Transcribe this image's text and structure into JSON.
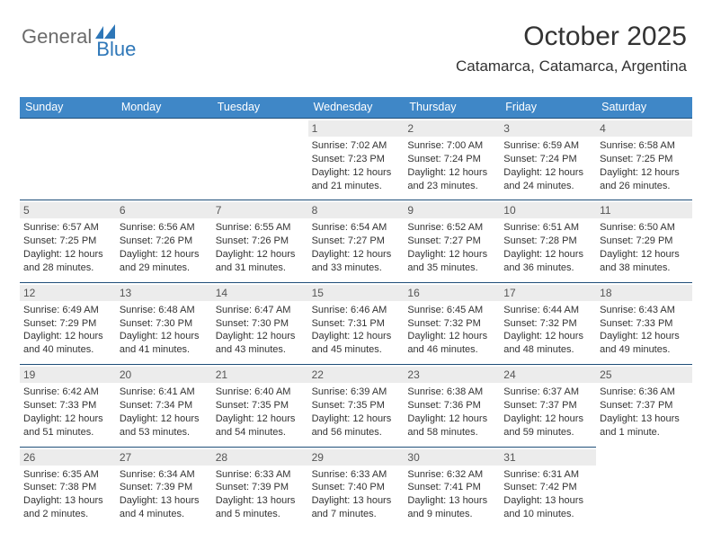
{
  "brand": {
    "general": "General",
    "blue": "Blue"
  },
  "title": "October 2025",
  "location": "Catamarca, Catamarca, Argentina",
  "colors": {
    "header_bg": "#3f87c7",
    "header_text": "#ffffff",
    "rule": "#1f4e79",
    "datebar_bg": "#ececec",
    "brand_blue": "#2e77b8",
    "brand_gray": "#6b6b6b"
  },
  "day_headers": [
    "Sunday",
    "Monday",
    "Tuesday",
    "Wednesday",
    "Thursday",
    "Friday",
    "Saturday"
  ],
  "leading_blanks": 3,
  "days": [
    {
      "n": "1",
      "sunrise": "Sunrise: 7:02 AM",
      "sunset": "Sunset: 7:23 PM",
      "d1": "Daylight: 12 hours",
      "d2": "and 21 minutes."
    },
    {
      "n": "2",
      "sunrise": "Sunrise: 7:00 AM",
      "sunset": "Sunset: 7:24 PM",
      "d1": "Daylight: 12 hours",
      "d2": "and 23 minutes."
    },
    {
      "n": "3",
      "sunrise": "Sunrise: 6:59 AM",
      "sunset": "Sunset: 7:24 PM",
      "d1": "Daylight: 12 hours",
      "d2": "and 24 minutes."
    },
    {
      "n": "4",
      "sunrise": "Sunrise: 6:58 AM",
      "sunset": "Sunset: 7:25 PM",
      "d1": "Daylight: 12 hours",
      "d2": "and 26 minutes."
    },
    {
      "n": "5",
      "sunrise": "Sunrise: 6:57 AM",
      "sunset": "Sunset: 7:25 PM",
      "d1": "Daylight: 12 hours",
      "d2": "and 28 minutes."
    },
    {
      "n": "6",
      "sunrise": "Sunrise: 6:56 AM",
      "sunset": "Sunset: 7:26 PM",
      "d1": "Daylight: 12 hours",
      "d2": "and 29 minutes."
    },
    {
      "n": "7",
      "sunrise": "Sunrise: 6:55 AM",
      "sunset": "Sunset: 7:26 PM",
      "d1": "Daylight: 12 hours",
      "d2": "and 31 minutes."
    },
    {
      "n": "8",
      "sunrise": "Sunrise: 6:54 AM",
      "sunset": "Sunset: 7:27 PM",
      "d1": "Daylight: 12 hours",
      "d2": "and 33 minutes."
    },
    {
      "n": "9",
      "sunrise": "Sunrise: 6:52 AM",
      "sunset": "Sunset: 7:27 PM",
      "d1": "Daylight: 12 hours",
      "d2": "and 35 minutes."
    },
    {
      "n": "10",
      "sunrise": "Sunrise: 6:51 AM",
      "sunset": "Sunset: 7:28 PM",
      "d1": "Daylight: 12 hours",
      "d2": "and 36 minutes."
    },
    {
      "n": "11",
      "sunrise": "Sunrise: 6:50 AM",
      "sunset": "Sunset: 7:29 PM",
      "d1": "Daylight: 12 hours",
      "d2": "and 38 minutes."
    },
    {
      "n": "12",
      "sunrise": "Sunrise: 6:49 AM",
      "sunset": "Sunset: 7:29 PM",
      "d1": "Daylight: 12 hours",
      "d2": "and 40 minutes."
    },
    {
      "n": "13",
      "sunrise": "Sunrise: 6:48 AM",
      "sunset": "Sunset: 7:30 PM",
      "d1": "Daylight: 12 hours",
      "d2": "and 41 minutes."
    },
    {
      "n": "14",
      "sunrise": "Sunrise: 6:47 AM",
      "sunset": "Sunset: 7:30 PM",
      "d1": "Daylight: 12 hours",
      "d2": "and 43 minutes."
    },
    {
      "n": "15",
      "sunrise": "Sunrise: 6:46 AM",
      "sunset": "Sunset: 7:31 PM",
      "d1": "Daylight: 12 hours",
      "d2": "and 45 minutes."
    },
    {
      "n": "16",
      "sunrise": "Sunrise: 6:45 AM",
      "sunset": "Sunset: 7:32 PM",
      "d1": "Daylight: 12 hours",
      "d2": "and 46 minutes."
    },
    {
      "n": "17",
      "sunrise": "Sunrise: 6:44 AM",
      "sunset": "Sunset: 7:32 PM",
      "d1": "Daylight: 12 hours",
      "d2": "and 48 minutes."
    },
    {
      "n": "18",
      "sunrise": "Sunrise: 6:43 AM",
      "sunset": "Sunset: 7:33 PM",
      "d1": "Daylight: 12 hours",
      "d2": "and 49 minutes."
    },
    {
      "n": "19",
      "sunrise": "Sunrise: 6:42 AM",
      "sunset": "Sunset: 7:33 PM",
      "d1": "Daylight: 12 hours",
      "d2": "and 51 minutes."
    },
    {
      "n": "20",
      "sunrise": "Sunrise: 6:41 AM",
      "sunset": "Sunset: 7:34 PM",
      "d1": "Daylight: 12 hours",
      "d2": "and 53 minutes."
    },
    {
      "n": "21",
      "sunrise": "Sunrise: 6:40 AM",
      "sunset": "Sunset: 7:35 PM",
      "d1": "Daylight: 12 hours",
      "d2": "and 54 minutes."
    },
    {
      "n": "22",
      "sunrise": "Sunrise: 6:39 AM",
      "sunset": "Sunset: 7:35 PM",
      "d1": "Daylight: 12 hours",
      "d2": "and 56 minutes."
    },
    {
      "n": "23",
      "sunrise": "Sunrise: 6:38 AM",
      "sunset": "Sunset: 7:36 PM",
      "d1": "Daylight: 12 hours",
      "d2": "and 58 minutes."
    },
    {
      "n": "24",
      "sunrise": "Sunrise: 6:37 AM",
      "sunset": "Sunset: 7:37 PM",
      "d1": "Daylight: 12 hours",
      "d2": "and 59 minutes."
    },
    {
      "n": "25",
      "sunrise": "Sunrise: 6:36 AM",
      "sunset": "Sunset: 7:37 PM",
      "d1": "Daylight: 13 hours",
      "d2": "and 1 minute."
    },
    {
      "n": "26",
      "sunrise": "Sunrise: 6:35 AM",
      "sunset": "Sunset: 7:38 PM",
      "d1": "Daylight: 13 hours",
      "d2": "and 2 minutes."
    },
    {
      "n": "27",
      "sunrise": "Sunrise: 6:34 AM",
      "sunset": "Sunset: 7:39 PM",
      "d1": "Daylight: 13 hours",
      "d2": "and 4 minutes."
    },
    {
      "n": "28",
      "sunrise": "Sunrise: 6:33 AM",
      "sunset": "Sunset: 7:39 PM",
      "d1": "Daylight: 13 hours",
      "d2": "and 5 minutes."
    },
    {
      "n": "29",
      "sunrise": "Sunrise: 6:33 AM",
      "sunset": "Sunset: 7:40 PM",
      "d1": "Daylight: 13 hours",
      "d2": "and 7 minutes."
    },
    {
      "n": "30",
      "sunrise": "Sunrise: 6:32 AM",
      "sunset": "Sunset: 7:41 PM",
      "d1": "Daylight: 13 hours",
      "d2": "and 9 minutes."
    },
    {
      "n": "31",
      "sunrise": "Sunrise: 6:31 AM",
      "sunset": "Sunset: 7:42 PM",
      "d1": "Daylight: 13 hours",
      "d2": "and 10 minutes."
    }
  ]
}
